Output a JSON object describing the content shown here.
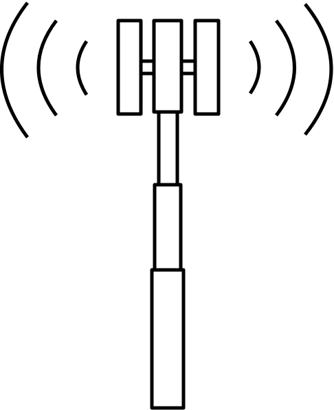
{
  "icon": {
    "name": "cell-tower-icon",
    "stroke_color": "#000000",
    "background_color": "#ffffff",
    "signal_waves_per_side": 3
  }
}
